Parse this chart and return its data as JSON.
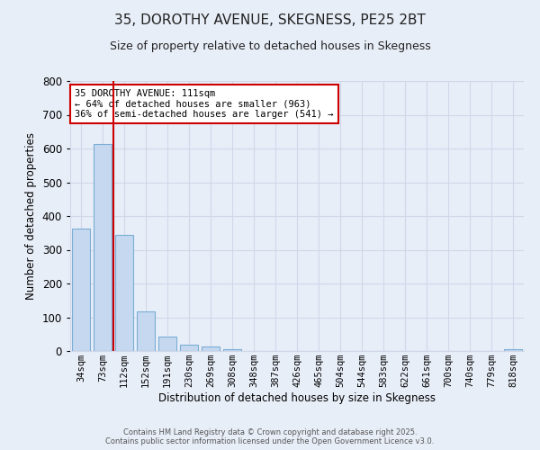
{
  "title": "35, DOROTHY AVENUE, SKEGNESS, PE25 2BT",
  "subtitle": "Size of property relative to detached houses in Skegness",
  "xlabel": "Distribution of detached houses by size in Skegness",
  "ylabel": "Number of detached properties",
  "bar_labels": [
    "34sqm",
    "73sqm",
    "112sqm",
    "152sqm",
    "191sqm",
    "230sqm",
    "269sqm",
    "308sqm",
    "348sqm",
    "387sqm",
    "426sqm",
    "465sqm",
    "504sqm",
    "544sqm",
    "583sqm",
    "622sqm",
    "661sqm",
    "700sqm",
    "740sqm",
    "779sqm",
    "818sqm"
  ],
  "bar_values": [
    362,
    614,
    345,
    117,
    42,
    20,
    13,
    5,
    0,
    0,
    0,
    0,
    0,
    0,
    0,
    0,
    0,
    0,
    0,
    0,
    5
  ],
  "bar_color": "#c5d8f0",
  "bar_edge_color": "#7aadd4",
  "ylim": [
    0,
    800
  ],
  "yticks": [
    0,
    100,
    200,
    300,
    400,
    500,
    600,
    700,
    800
  ],
  "property_line_color": "#cc0000",
  "annotation_text": "35 DOROTHY AVENUE: 111sqm\n← 64% of detached houses are smaller (963)\n36% of semi-detached houses are larger (541) →",
  "annotation_box_color": "#ffffff",
  "annotation_box_edge": "#cc0000",
  "grid_color": "#d0d8e8",
  "background_color": "#e8eef8",
  "footer_line1": "Contains HM Land Registry data © Crown copyright and database right 2025.",
  "footer_line2": "Contains public sector information licensed under the Open Government Licence v3.0.",
  "title_fontsize": 11,
  "subtitle_fontsize": 9
}
